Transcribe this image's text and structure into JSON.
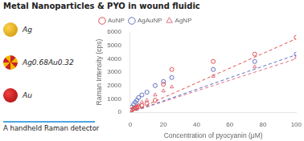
{
  "chart_data": {
    "type": "scatter",
    "title": "Metal Nanoparticles & PYO in wound fluidic",
    "subtitle": "A handheld Raman detector",
    "annotations": [
      "Ag",
      "Ag0.68Au0.32",
      "Au"
    ],
    "xlabel": "Concentration of pyocyanin (μM)",
    "ylabel": "Raman Intensity (cps)",
    "xlim": [
      0,
      100
    ],
    "ylim": [
      0,
      6000
    ],
    "xticks": [
      0,
      20,
      40,
      60,
      80,
      100
    ],
    "yticks": [
      0,
      1000,
      2000,
      3000,
      4000,
      5000,
      6000
    ],
    "grid": false,
    "legend": "upper left",
    "series": [
      {
        "name": "AuNP",
        "color": "#e05050",
        "marker": "circle",
        "x": [
          1,
          2,
          3,
          4,
          5,
          7,
          10,
          15,
          20,
          25,
          50,
          75,
          100
        ],
        "values": [
          200,
          280,
          320,
          380,
          420,
          500,
          650,
          900,
          2100,
          3200,
          3800,
          4350,
          5600
        ],
        "fit_x": [
          0,
          100
        ],
        "fit_values": [
          0,
          5500
        ]
      },
      {
        "name": "AgAuNP",
        "color": "#6070c0",
        "marker": "circle",
        "x": [
          1,
          2,
          3,
          4,
          5,
          7,
          10,
          15,
          20,
          25,
          50,
          75,
          100
        ],
        "values": [
          400,
          600,
          750,
          900,
          1100,
          1300,
          1500,
          2000,
          2300,
          2600,
          3200,
          3800,
          4350
        ],
        "fit_x": [
          0,
          100
        ],
        "fit_values": [
          0,
          4300
        ]
      },
      {
        "name": "AgNP",
        "color": "#e07080",
        "marker": "triangle",
        "x": [
          1,
          2,
          3,
          4,
          5,
          7,
          10,
          15,
          20,
          25,
          50,
          75,
          100
        ],
        "values": [
          150,
          250,
          350,
          450,
          550,
          750,
          900,
          1300,
          1600,
          1900,
          2700,
          3400,
          4100
        ],
        "fit_x": [
          0,
          100
        ],
        "fit_values": [
          0,
          4000
        ]
      }
    ]
  }
}
